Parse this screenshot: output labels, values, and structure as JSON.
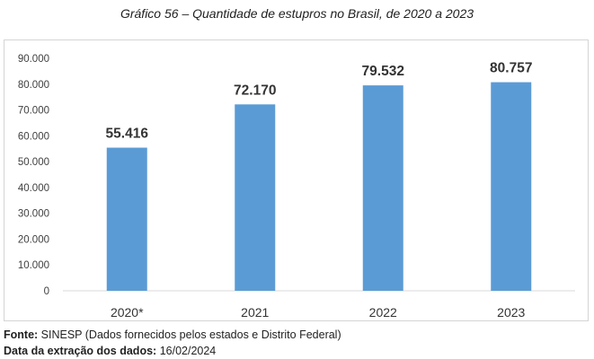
{
  "title": "Gráfico 56 – Quantidade de estupros no Brasil, de 2020 a 2023",
  "source_label": "Fonte:",
  "source_text": "SINESP (Dados fornecidos pelos estados e Distrito Federal)",
  "extraction_label": "Data da extração dos dados:",
  "extraction_date": "16/02/2024",
  "colors": {
    "bar": "#5b9bd5",
    "axis": "#d9d9d9"
  },
  "chart_data": {
    "type": "bar",
    "title": "Gráfico 56 – Quantidade de estupros no Brasil, de 2020 a 2023",
    "categories": [
      "2020*",
      "2021",
      "2022",
      "2023"
    ],
    "values": [
      55416,
      72170,
      79532,
      80757
    ],
    "value_labels": [
      "55.416",
      "72.170",
      "79.532",
      "80.757"
    ],
    "ylim": [
      0,
      90000
    ],
    "yticks": [
      0,
      10000,
      20000,
      30000,
      40000,
      50000,
      60000,
      70000,
      80000,
      90000
    ],
    "ytick_labels": [
      "0",
      "10.000",
      "20.000",
      "30.000",
      "40.000",
      "50.000",
      "60.000",
      "70.000",
      "80.000",
      "90.000"
    ],
    "xlabel": "",
    "ylabel": "",
    "grid": false,
    "legend": false
  }
}
